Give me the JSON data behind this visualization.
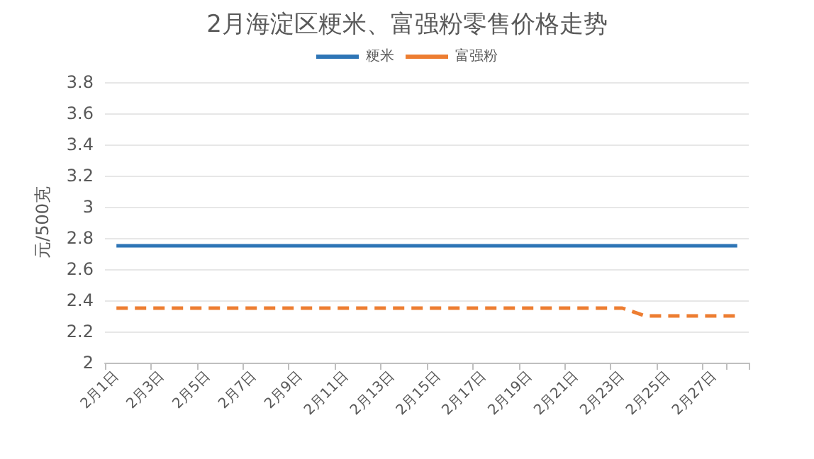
{
  "chart_data": {
    "type": "line",
    "title": "2月海淀区粳米、富强粉零售价格走势",
    "ylabel": "元/500克",
    "categories": [
      "2月1日",
      null,
      "2月3日",
      null,
      "2月5日",
      null,
      "2月7日",
      null,
      "2月9日",
      null,
      "2月11日",
      null,
      "2月13日",
      null,
      "2月15日",
      null,
      "2月17日",
      null,
      "2月19日",
      null,
      "2月21日",
      null,
      "2月23日",
      null,
      "2月25日",
      null,
      "2月27日",
      null
    ],
    "series": [
      {
        "name": "粳米",
        "color": "#2e75b6",
        "line_style": "solid",
        "values": [
          2.75,
          2.75,
          2.75,
          2.75,
          2.75,
          2.75,
          2.75,
          2.75,
          2.75,
          2.75,
          2.75,
          2.75,
          2.75,
          2.75,
          2.75,
          2.75,
          2.75,
          2.75,
          2.75,
          2.75,
          2.75,
          2.75,
          2.75,
          2.75,
          2.75,
          2.75,
          2.75,
          2.75
        ]
      },
      {
        "name": "富强粉",
        "color": "#ed7d31",
        "line_style": "dashed",
        "values": [
          2.35,
          2.35,
          2.35,
          2.35,
          2.35,
          2.35,
          2.35,
          2.35,
          2.35,
          2.35,
          2.35,
          2.35,
          2.35,
          2.35,
          2.35,
          2.35,
          2.35,
          2.35,
          2.35,
          2.35,
          2.35,
          2.35,
          2.35,
          2.3,
          2.3,
          2.3,
          2.3,
          2.3
        ]
      }
    ],
    "ylim": [
      2,
      3.8
    ],
    "yticks": [
      2,
      2.2,
      2.4,
      2.6,
      2.8,
      3,
      3.2,
      3.4,
      3.6,
      3.8
    ],
    "grid": "y",
    "legend": "top",
    "marker": "none"
  }
}
